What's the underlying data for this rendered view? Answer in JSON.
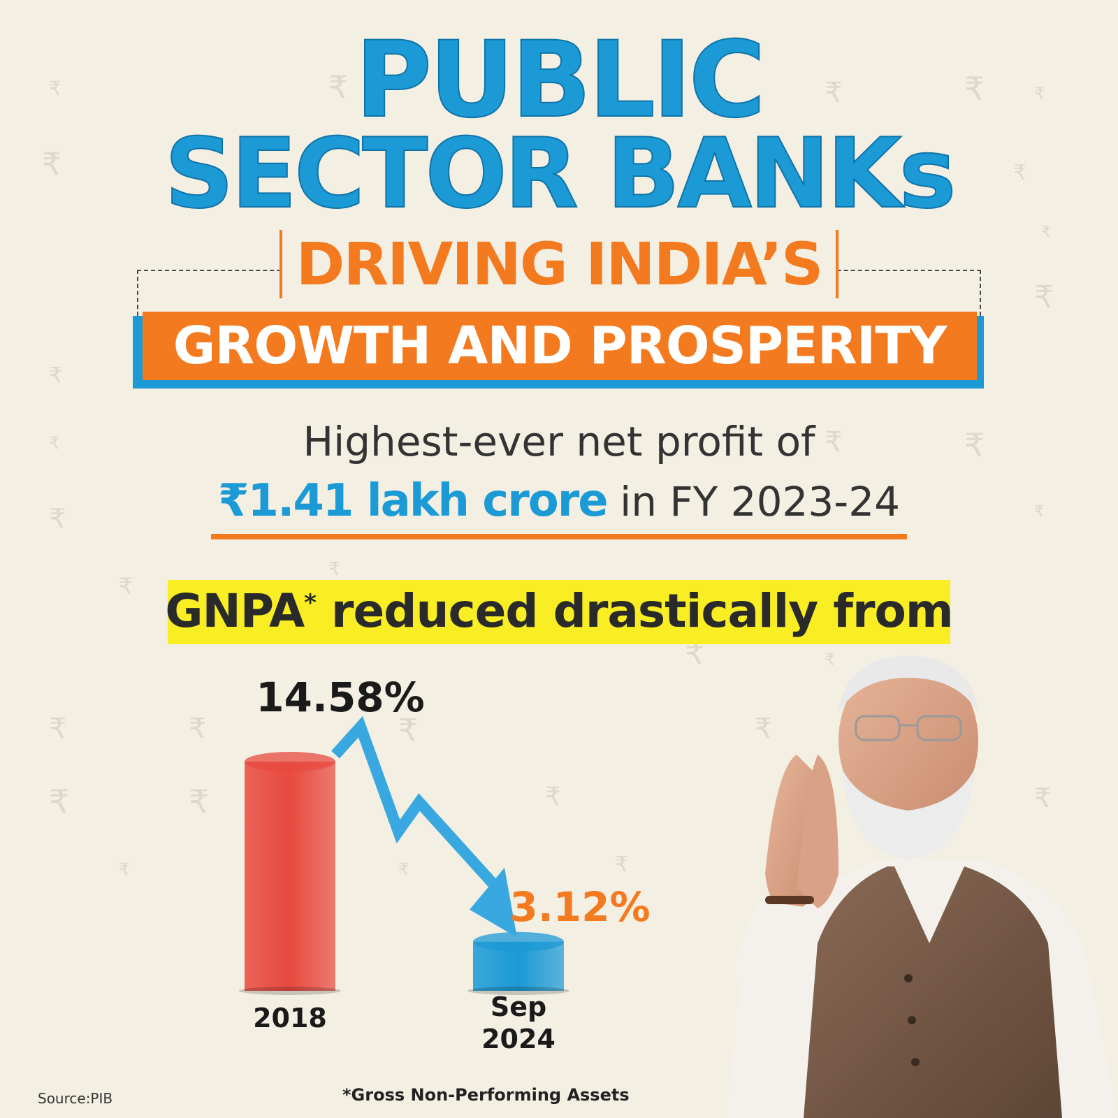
{
  "header": {
    "title_line1": "PUBLIC",
    "title_line2": "SECTOR BANKs",
    "subtitle_line1": "DRIVING INDIA’S",
    "subtitle_line2": "GROWTH AND PROSPERITY"
  },
  "profit": {
    "line1": "Highest-ever net profit of",
    "amount": "₹1.41 lakh crore",
    "period": " in FY 2023-24"
  },
  "gnpa": {
    "label": "GNPA",
    "marker": "*",
    "rest": "reduced drastically from"
  },
  "chart_data": {
    "type": "bar",
    "categories": [
      "2018",
      "Sep 2024"
    ],
    "values": [
      14.58,
      3.12
    ],
    "value_labels": [
      "14.58%",
      "3.12%"
    ],
    "unit": "%",
    "title": "",
    "xlabel": "",
    "ylabel": "",
    "grid": false,
    "colors": [
      "#e8493f",
      "#1b9ad6"
    ],
    "trend_arrow_color": "#3aa8e0"
  },
  "footnote": "*Gross Non-Performing Assets",
  "source": "Source:PIB",
  "colors": {
    "background": "#f3efe3",
    "blue": "#1b9ad6",
    "orange": "#f47a1f",
    "yellow": "#f8ee23",
    "dark_text": "#2a2a2a"
  },
  "decor": {
    "background_symbol": "₹",
    "portrait": "person-with-folded-hands"
  }
}
